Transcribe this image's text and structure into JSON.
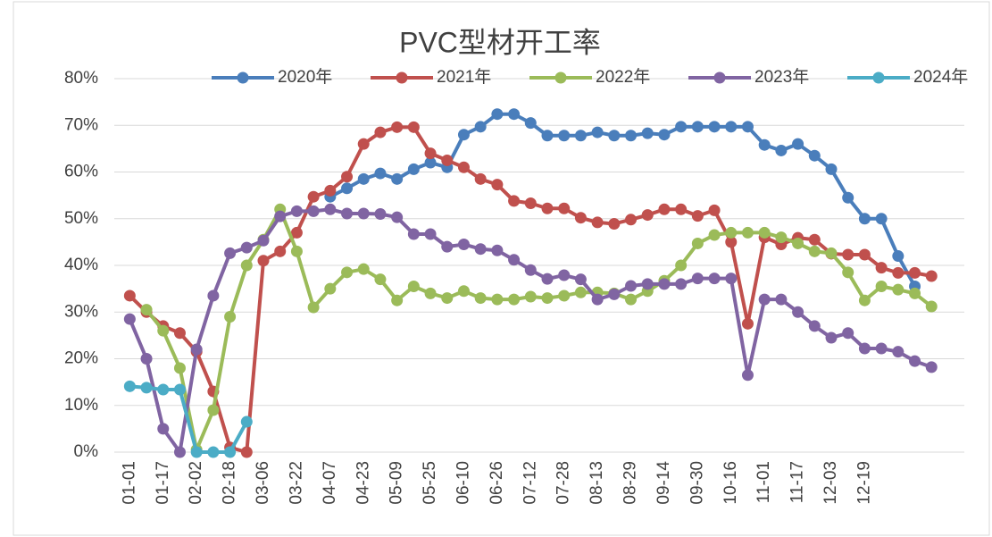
{
  "chart_data": {
    "type": "line",
    "title": "PVC型材开工率",
    "categories": [
      "01-01",
      null,
      "01-17",
      null,
      "02-02",
      null,
      "02-18",
      null,
      "03-06",
      null,
      "03-22",
      null,
      "04-07",
      null,
      "04-23",
      null,
      "05-09",
      null,
      "05-25",
      null,
      "06-10",
      null,
      "06-26",
      null,
      "07-12",
      null,
      "07-28",
      null,
      "08-13",
      null,
      "08-29",
      null,
      "09-14",
      null,
      "09-30",
      null,
      "10-16",
      null,
      "11-01",
      null,
      "11-17",
      null,
      "12-03",
      null,
      "12-19",
      null,
      null,
      null,
      null,
      null,
      null
    ],
    "series": [
      {
        "name": "2020年",
        "color": "#4a7ebb",
        "values": [
          null,
          null,
          null,
          null,
          null,
          null,
          null,
          null,
          null,
          null,
          null,
          null,
          54.7,
          56.5,
          58.5,
          59.7,
          58.5,
          60.6,
          62,
          61,
          68,
          69.7,
          72.4,
          72.4,
          70.5,
          67.8,
          67.8,
          67.8,
          68.5,
          67.8,
          67.8,
          68.3,
          68,
          69.7,
          69.7,
          69.7,
          69.7,
          69.7,
          65.8,
          64.6,
          66,
          63.5,
          60.6,
          54.5,
          50,
          50,
          42,
          35.5,
          null,
          null,
          null
        ]
      },
      {
        "name": "2021年",
        "color": "#c0504d",
        "values": [
          33.5,
          30,
          27,
          25.5,
          21.5,
          13,
          1,
          0,
          41,
          43,
          47,
          54.7,
          56,
          59,
          66,
          68.5,
          69.6,
          69.6,
          64,
          62.5,
          61,
          58.5,
          57.3,
          53.8,
          53.3,
          52.2,
          52.2,
          50.2,
          49.2,
          48.9,
          49.8,
          50.8,
          52,
          52,
          50.6,
          51.8,
          45,
          27.5,
          46,
          44.5,
          45.9,
          45.5,
          42.5,
          42.3,
          42.3,
          39.5,
          38.4,
          38.4,
          37.7,
          null,
          null
        ]
      },
      {
        "name": "2022年",
        "color": "#9bbb59",
        "values": [
          null,
          30.5,
          26,
          18,
          0.5,
          9,
          29,
          40,
          45.5,
          52,
          43,
          31,
          35,
          38.5,
          39.2,
          37,
          32.5,
          35.5,
          34,
          33,
          34.5,
          33,
          32.7,
          32.7,
          33.3,
          33,
          33.5,
          34.2,
          34.2,
          34,
          32.7,
          34.5,
          36.7,
          40,
          44.7,
          46.5,
          47,
          47,
          47,
          46,
          44.7,
          43,
          42.6,
          38.5,
          32.5,
          35.5,
          34.8,
          34,
          31.2,
          null,
          null
        ]
      },
      {
        "name": "2023年",
        "color": "#8064a2",
        "values": [
          28.5,
          20,
          5,
          0,
          22,
          33.5,
          42.6,
          43.8,
          45.3,
          50.5,
          51.6,
          51.6,
          52,
          51.1,
          51.1,
          51,
          50.3,
          46.7,
          46.7,
          44,
          44.5,
          43.5,
          43.2,
          41.2,
          39,
          37.1,
          37.9,
          37,
          32.7,
          33.8,
          35.6,
          36,
          36,
          36,
          37.2,
          37.2,
          37.2,
          16.5,
          32.7,
          32.7,
          30,
          27,
          24.5,
          25.5,
          22.2,
          22.2,
          21.5,
          19.5,
          18.2,
          null,
          null
        ]
      },
      {
        "name": "2024年",
        "color": "#4bacc6",
        "values": [
          14.1,
          13.8,
          13.4,
          13.4,
          0,
          0,
          0,
          6.5,
          null,
          null,
          null,
          null,
          null,
          null,
          null,
          null,
          null,
          null,
          null,
          null,
          null,
          null,
          null,
          null,
          null,
          null,
          null,
          null,
          null,
          null,
          null,
          null,
          null,
          null,
          null,
          null,
          null,
          null,
          null,
          null,
          null,
          null,
          null,
          null,
          null,
          null,
          null,
          null,
          null,
          null,
          null
        ]
      }
    ],
    "ylim": [
      0,
      80
    ],
    "yticks": [
      {
        "value": 0,
        "label": "0%"
      },
      {
        "value": 10,
        "label": "10%"
      },
      {
        "value": 20,
        "label": "20%"
      },
      {
        "value": 30,
        "label": "30%"
      },
      {
        "value": 40,
        "label": "40%"
      },
      {
        "value": 50,
        "label": "50%"
      },
      {
        "value": 60,
        "label": "60%"
      },
      {
        "value": 70,
        "label": "70%"
      },
      {
        "value": 80,
        "label": "80%"
      }
    ],
    "grid": true,
    "legend": "top"
  }
}
